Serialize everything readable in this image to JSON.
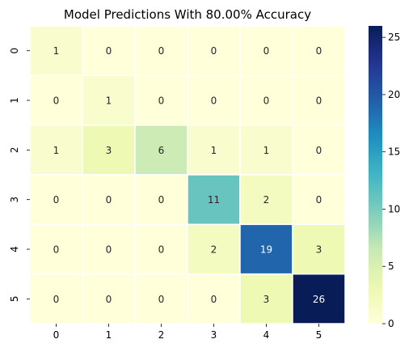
{
  "chart_data": {
    "type": "heatmap",
    "title": "Model Predictions With 80.00% Accuracy",
    "xlabel": "",
    "ylabel": "",
    "x_categories": [
      "0",
      "1",
      "2",
      "3",
      "4",
      "5"
    ],
    "y_categories": [
      "0",
      "1",
      "2",
      "3",
      "4",
      "5"
    ],
    "values": [
      [
        1,
        0,
        0,
        0,
        0,
        0
      ],
      [
        0,
        1,
        0,
        0,
        0,
        0
      ],
      [
        1,
        3,
        6,
        1,
        1,
        0
      ],
      [
        0,
        0,
        0,
        11,
        2,
        0
      ],
      [
        0,
        0,
        0,
        2,
        19,
        3
      ],
      [
        0,
        0,
        0,
        0,
        3,
        26
      ]
    ],
    "colormap": "YlGnBu",
    "vmin": 0,
    "vmax": 26,
    "colorbar_ticks": [
      0,
      5,
      10,
      15,
      20,
      25
    ],
    "annotated": true,
    "cell_border_color": "#ffffff",
    "grid": false
  }
}
